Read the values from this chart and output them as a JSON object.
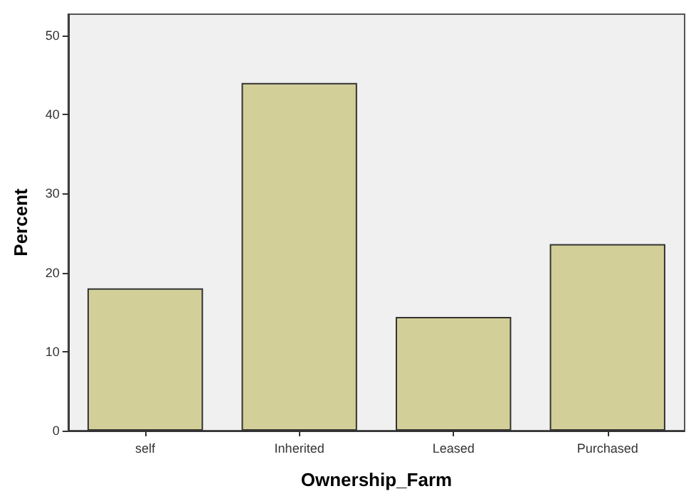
{
  "chart_data": {
    "type": "bar",
    "xlabel": "Ownership_Farm",
    "ylabel": "Percent",
    "categories": [
      "self",
      "Inherited",
      "Leased",
      "Purchased"
    ],
    "values": [
      18,
      44,
      14.4,
      23.6
    ],
    "color": "#d3cf98",
    "ylim": [
      0,
      52.7
    ],
    "yticks": [
      0,
      10,
      20,
      30,
      40,
      50
    ],
    "grid": false
  }
}
